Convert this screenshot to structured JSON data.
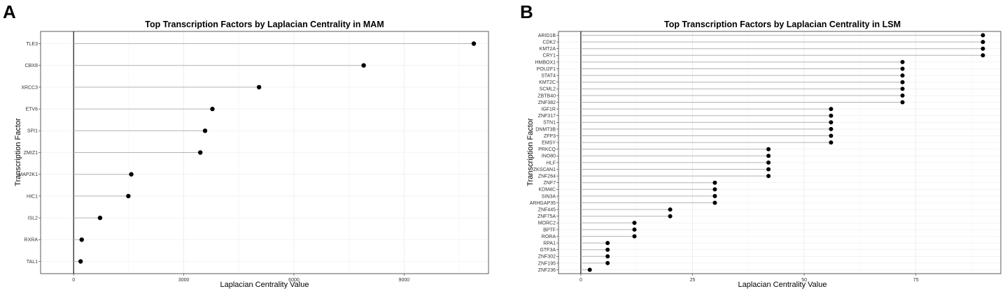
{
  "chart_data": [
    {
      "panel": "A",
      "type": "lollipop",
      "title": "Top Transcription Factors by Laplacian Centrality in MAM",
      "xlabel": "Laplacian Centrality Value",
      "ylabel": "Transcription Factor",
      "xlim": [
        -900,
        11300
      ],
      "xticks": [
        0,
        3000,
        6000,
        9000
      ],
      "grid": true,
      "categories": [
        "TLE3",
        "CBX8",
        "XRCC3",
        "ETV6",
        "SPI1",
        "ZMIZ1",
        "MAP2K1",
        "HIC1",
        "ISL2",
        "RXRA",
        "TAL1"
      ],
      "values": [
        10900,
        7900,
        5050,
        3780,
        3580,
        3450,
        1570,
        1490,
        720,
        220,
        190
      ]
    },
    {
      "panel": "B",
      "type": "lollipop",
      "title": "Top Transcription Factors by Laplacian Centrality in LSM",
      "xlabel": "Laplacian Centrality Value",
      "ylabel": "Transcription Factor",
      "xlim": [
        -5,
        94
      ],
      "xticks": [
        0,
        25,
        50,
        75
      ],
      "grid": true,
      "categories": [
        "ARID1B",
        "CDK2",
        "KMT2A",
        "CRY1",
        "HMBOX1",
        "POU2F1",
        "STAT4",
        "KMT2C",
        "SCML2",
        "ZBTB40",
        "ZNF382",
        "IGF1R",
        "ZNF317",
        "STN1",
        "DNMT3B",
        "ZFP3",
        "EMSY",
        "PRKCQ",
        "INO80",
        "HLF",
        "ZKSCAN1",
        "ZNF264",
        "ZNF7",
        "KDM4C",
        "SIN3A",
        "ARHGAP35",
        "ZNF445",
        "ZNF75A",
        "MORC2",
        "BPTF",
        "RORA",
        "RPA1",
        "GTF3A",
        "ZNF302",
        "ZNF195",
        "ZNF236"
      ],
      "values": [
        90,
        90,
        90,
        90,
        72,
        72,
        72,
        72,
        72,
        72,
        72,
        56,
        56,
        56,
        56,
        56,
        56,
        42,
        42,
        42,
        42,
        42,
        30,
        30,
        30,
        30,
        20,
        20,
        12,
        12,
        12,
        6,
        6,
        6,
        6,
        2
      ]
    }
  ]
}
